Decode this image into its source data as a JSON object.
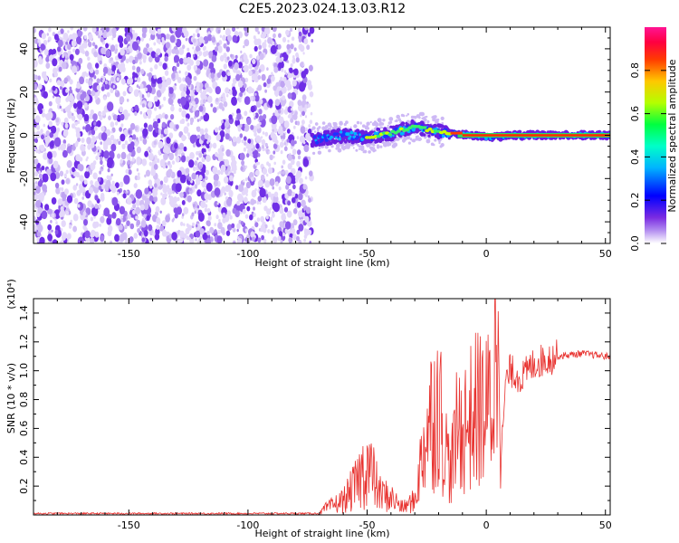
{
  "title": "C2E5.2023.024.13.03.R12",
  "colors": {
    "snr_line": "#e8322f",
    "noise": "#7a3cf0",
    "colorbar_stops": [
      "#8a2be2",
      "#0000ff",
      "#00c8ff",
      "#00ff60",
      "#c8ff00",
      "#ff8c00",
      "#ff0000",
      "#ff1493"
    ]
  },
  "chart_data": [
    {
      "type": "heatmap",
      "title": "C2E5.2023.024.13.03.R12",
      "xlabel": "Height of straight line (km)",
      "ylabel": "Frequency (Hz)",
      "xlim": [
        -190,
        52
      ],
      "ylim": [
        -50,
        50
      ],
      "x_ticks": [
        "-150",
        "-100",
        "-50",
        "0",
        "50"
      ],
      "y_ticks": [
        "-40",
        "-20",
        "0",
        "20",
        "40"
      ],
      "colorbar": {
        "label": "Normalized spectral amplitude",
        "range": [
          0,
          1
        ],
        "ticks": [
          "0.0",
          "0.2",
          "0.4",
          "0.6",
          "0.8"
        ]
      },
      "noise_region_x": [
        -190,
        -73
      ],
      "signal_center_track": {
        "x": [
          -73,
          -60,
          -50,
          -40,
          -30,
          -22,
          -15,
          -5,
          0,
          10,
          20,
          50
        ],
        "y": [
          -2,
          0,
          -1,
          1,
          4,
          2,
          1,
          0,
          -1,
          0,
          0,
          0
        ]
      }
    },
    {
      "type": "line",
      "xlabel": "Height of straight line (km)",
      "ylabel": "SNR (10 * v/v)",
      "y_multiplier": "(x10⁴)",
      "xlim": [
        -190,
        52
      ],
      "ylim": [
        0,
        1.5
      ],
      "x_ticks": [
        "-150",
        "-100",
        "-50",
        "0",
        "50"
      ],
      "y_ticks": [
        "0.2",
        "0.4",
        "0.6",
        "0.8",
        "1.0",
        "1.2",
        "1.4"
      ],
      "series": [
        {
          "x": [
            -190,
            -70,
            -68,
            -60,
            -55,
            -50,
            -47,
            -45,
            -40,
            -35,
            -30,
            -28,
            -25,
            -20,
            -18,
            -15,
            -12,
            -10,
            -5,
            -3,
            0,
            3,
            5,
            6,
            8,
            10,
            15,
            20,
            25,
            30,
            40,
            50,
            52
          ],
          "y": [
            0.01,
            0.01,
            0.04,
            0.1,
            0.2,
            0.35,
            0.25,
            0.15,
            0.12,
            0.05,
            0.1,
            0.3,
            0.6,
            0.8,
            0.55,
            0.3,
            0.6,
            0.6,
            0.7,
            0.75,
            0.7,
            0.85,
            1.48,
            0.3,
            0.9,
            1.0,
            0.95,
            1.05,
            1.08,
            1.1,
            1.12,
            1.1,
            1.1
          ]
        }
      ]
    }
  ]
}
